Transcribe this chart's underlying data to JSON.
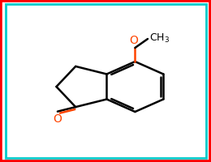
{
  "background_color": "#ffffff",
  "border_color_outer": "#ff0000",
  "border_color_inner": "#00cccc",
  "bond_color": "#000000",
  "bond_width": 1.8,
  "oxygen_color": "#ff4400",
  "font_size_O": 10,
  "font_size_CH3": 9
}
